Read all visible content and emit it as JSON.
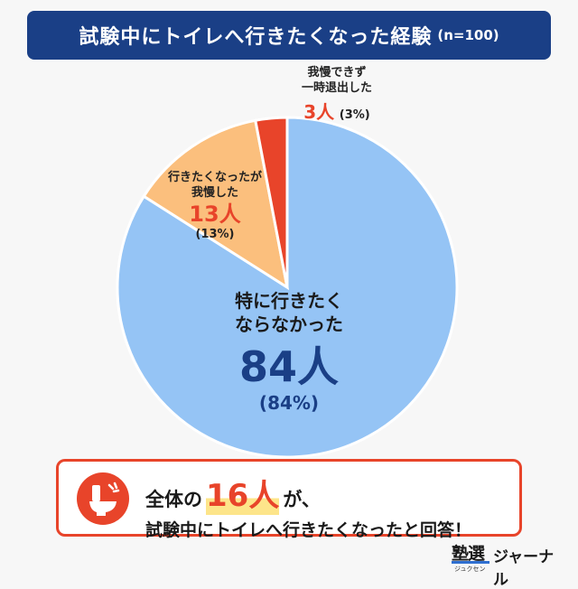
{
  "header": {
    "title": "試験中にトイレへ行きたくなった経験",
    "sample": "(n=100)"
  },
  "chart_data": {
    "type": "pie",
    "title": "試験中にトイレへ行きたくなった経験",
    "start": "top, clockwise",
    "slices": [
      {
        "label_lines": [
          "特に行きたく",
          "ならなかった"
        ],
        "count": "84人",
        "percent": "(84%)",
        "value": 84,
        "color": "#95c4f5"
      },
      {
        "label_lines": [
          "行きたくなったが",
          "我慢した"
        ],
        "count": "13人",
        "percent": "(13%)",
        "value": 13,
        "color": "#fbbf7d"
      },
      {
        "label_lines": [
          "我慢できず",
          "一時退出した"
        ],
        "count": "3人",
        "percent": "(3%)",
        "value": 3,
        "color": "#e8442a"
      }
    ]
  },
  "callout": {
    "prefix": "全体の",
    "highlight": "16人",
    "suffix": "が、",
    "line2": "試験中にトイレへ行きたくなったと回答！",
    "icon": "toilet-icon"
  },
  "logo": {
    "mark": "塾選",
    "sub": "ジュクセン",
    "name": "ジャーナル"
  }
}
